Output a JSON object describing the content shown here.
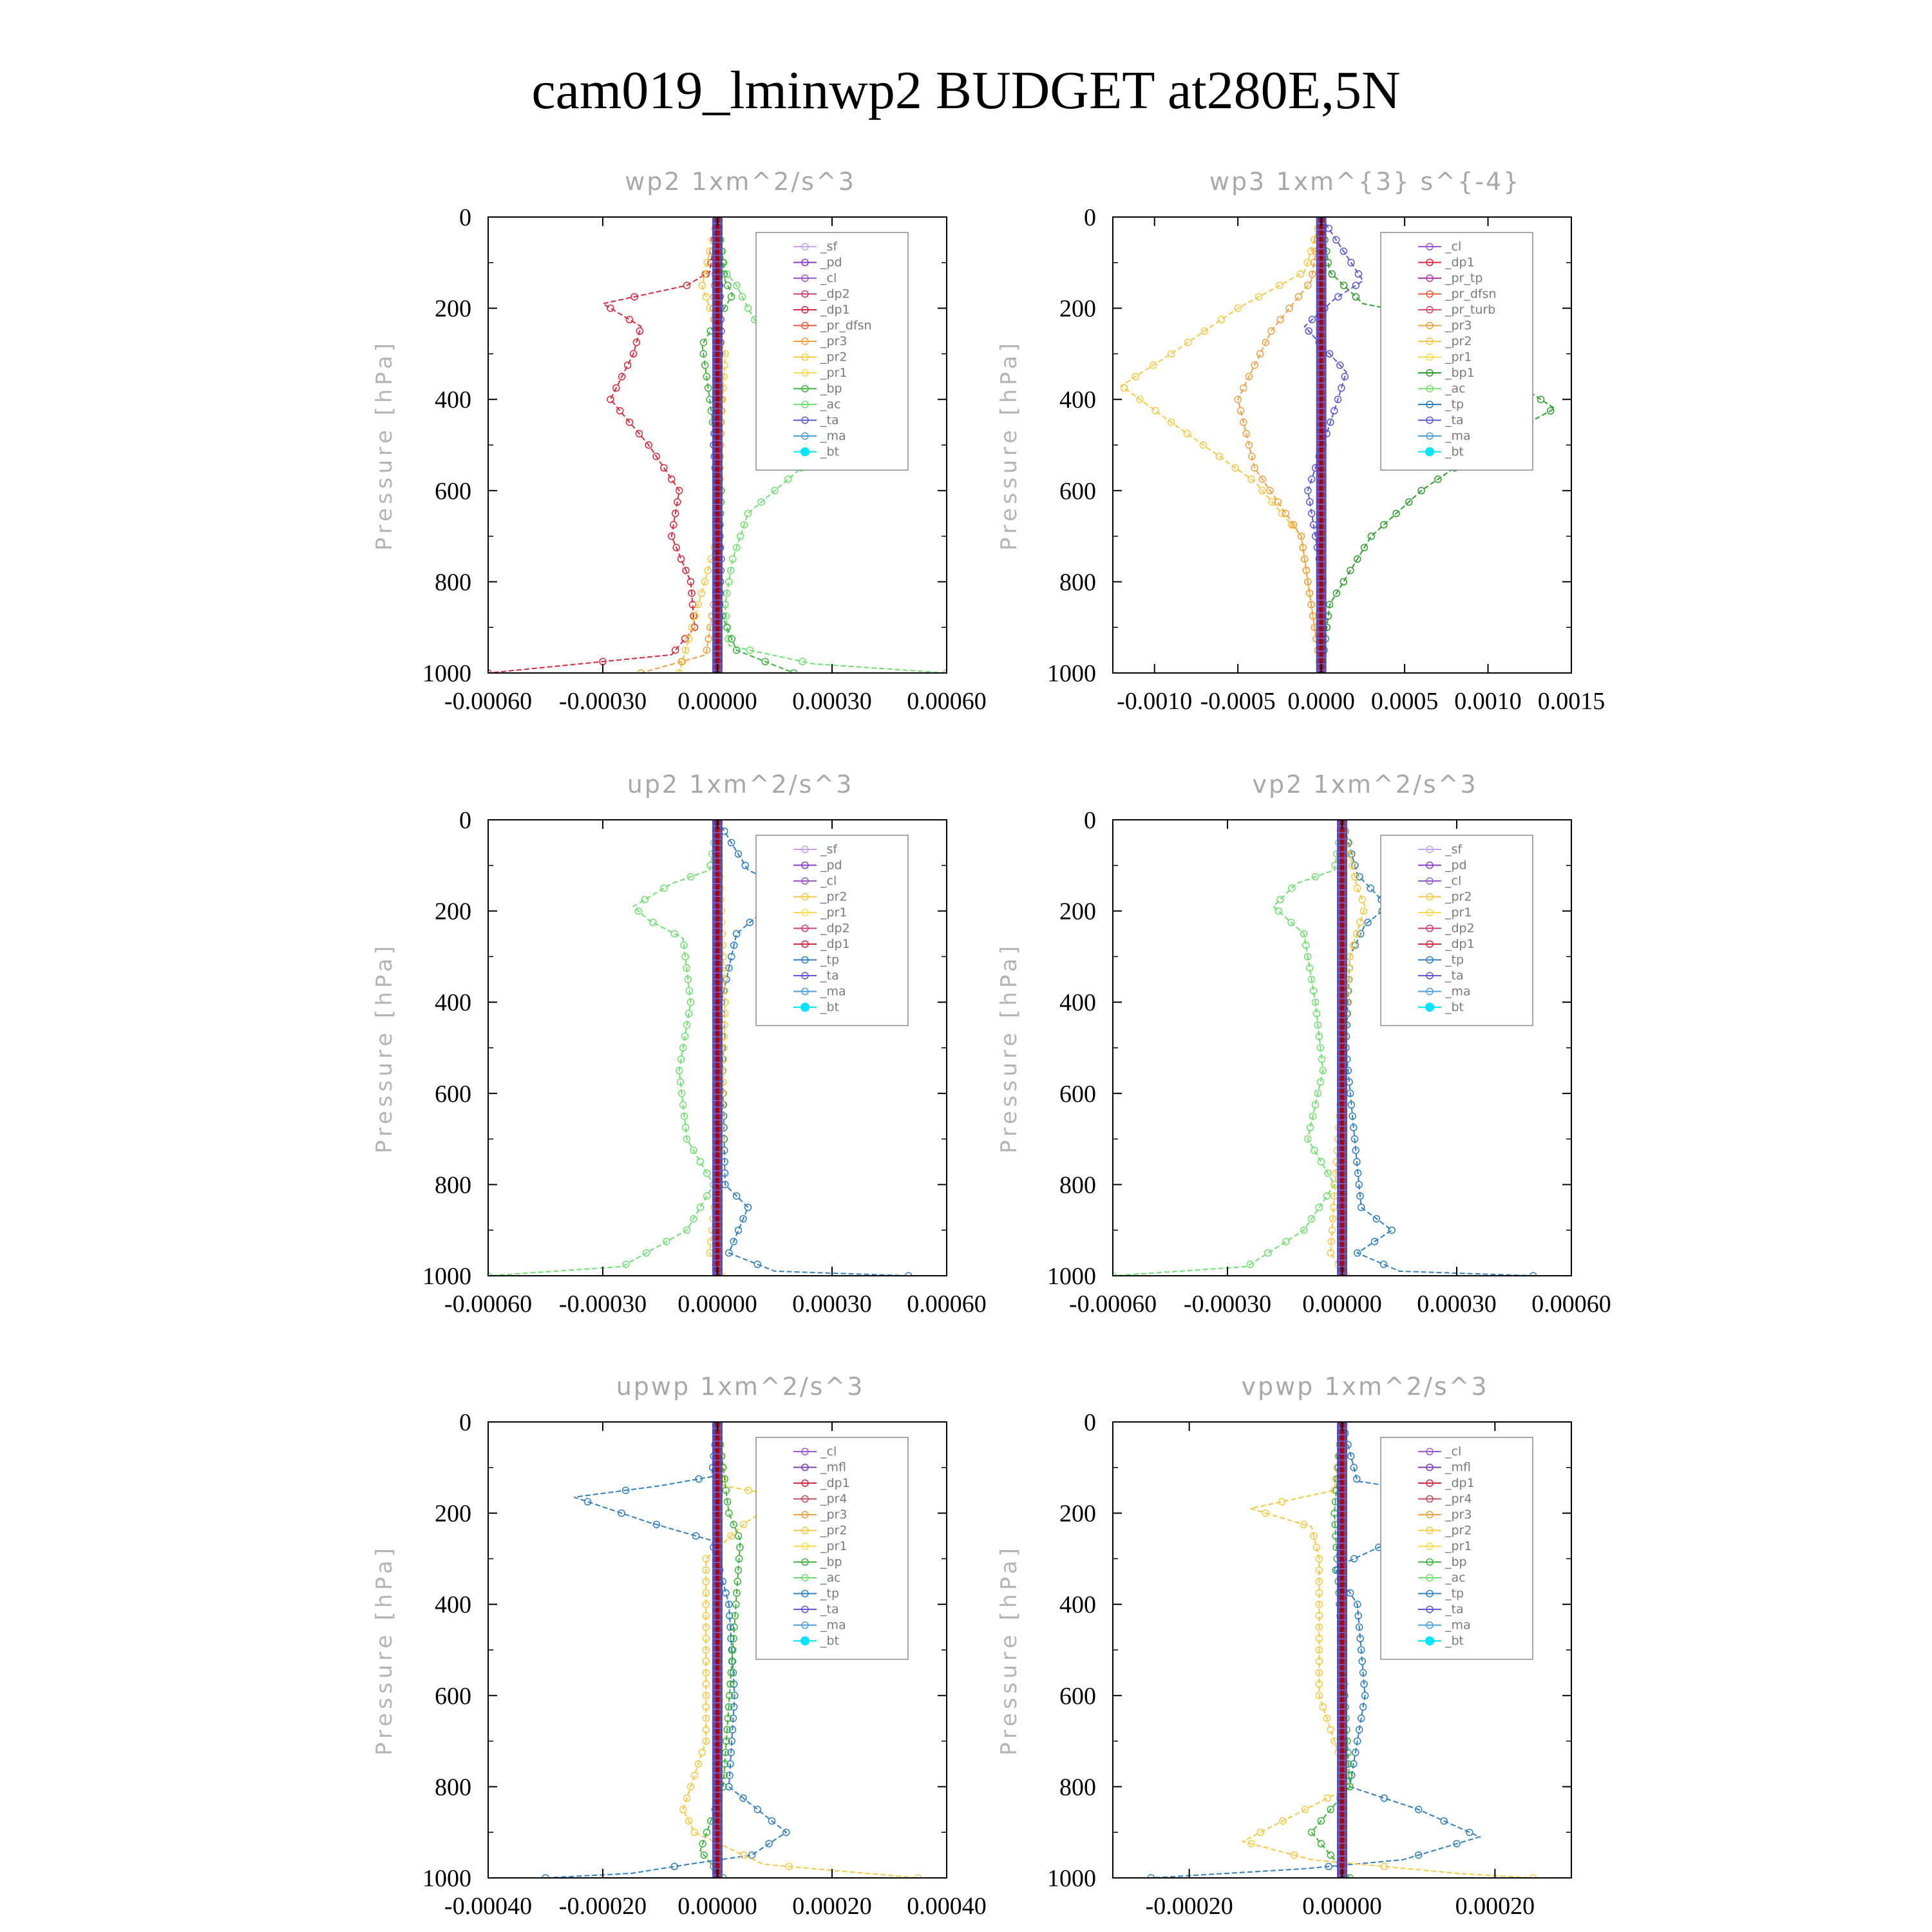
{
  "title": "cam019_lminwp2  BUDGET at280E,5N",
  "colors": {
    "sf": "#c8a2e8",
    "pd": "#8a3cc8",
    "cl": "#9b59d0",
    "dp2": "#c83c78",
    "dp1": "#d8283c",
    "pr_dfsn": "#e85a3c",
    "pr_tp": "#b03cb0",
    "pr_turb": "#d84a6a",
    "pr3": "#f0a040",
    "pr2": "#f5c842",
    "pr1": "#f8dc50",
    "pr4": "#c0505a",
    "bp": "#3cb43c",
    "bp1": "#2ca02c",
    "ac": "#6ee06e",
    "tp": "#2f7fc1",
    "ta": "#5a5ad8",
    "ma": "#4aa0d8",
    "bt": "#00e5ff",
    "mfl": "#7b3fb5",
    "bold_line": "#b00000",
    "frame": "#000000",
    "panel_title": "#a8a8a8"
  },
  "chart_data": [
    {
      "type": "line",
      "id": "wp2",
      "title": "wp2   1xm^2/s^3",
      "ylabel": "Pressure  [hPa]",
      "ylim": [
        1000,
        0
      ],
      "xlim": [
        -0.0006,
        0.0006
      ],
      "xticks": [
        "-0.00060",
        "-0.00030",
        "0.00000",
        "0.00030",
        "0.00060"
      ],
      "xtick_values": [
        -0.0006,
        -0.0003,
        0,
        0.0003,
        0.0006
      ],
      "yticks": [
        "0",
        "200",
        "400",
        "600",
        "800",
        "1000"
      ],
      "legend": [
        "_sf",
        "_pd",
        "_cl",
        "_dp2",
        "_dp1",
        "_pr_dfsn",
        "_pr3",
        "_pr2",
        "_pr1",
        "_bp",
        "_ac",
        "_ta",
        "_ma",
        "_bt"
      ],
      "series": [
        {
          "name": "_dp1",
          "color": "dp1",
          "x": [
            0,
            -2e-05,
            -8e-05,
            -0.0003,
            -0.0002,
            -0.00022,
            -0.00028,
            -0.00018,
            -0.0001,
            -0.00012,
            -7e-05,
            -6e-05,
            -0.00012,
            -0.0006
          ],
          "y": [
            0,
            120,
            150,
            190,
            240,
            300,
            400,
            500,
            600,
            700,
            800,
            900,
            960,
            1000
          ]
        },
        {
          "name": "_ac",
          "color": "ac",
          "x": [
            0,
            2e-05,
            5e-05,
            8e-05,
            0.00015,
            0.00028,
            0.00032,
            0.00022,
            8e-05,
            4e-05,
            2e-05,
            3e-05,
            0.00025,
            0.0006
          ],
          "y": [
            0,
            120,
            150,
            200,
            300,
            400,
            460,
            550,
            650,
            750,
            850,
            940,
            980,
            1000
          ]
        },
        {
          "name": "_bp",
          "color": "bp",
          "x": [
            0,
            2e-05,
            4e-05,
            -4e-05,
            -2e-05,
            1e-05,
            0,
            5e-05,
            0.0002
          ],
          "y": [
            0,
            140,
            170,
            280,
            400,
            600,
            850,
            950,
            1000
          ]
        },
        {
          "name": "_pr2",
          "color": "pr2",
          "x": [
            0,
            -4e-05,
            -2e-05,
            2e-05,
            1e-05,
            0,
            -0.0001
          ],
          "y": [
            0,
            150,
            200,
            300,
            450,
            700,
            1000
          ]
        },
        {
          "name": "_pr3",
          "color": "pr3",
          "x": [
            0,
            -1e-05,
            1e-05,
            0,
            -3e-05,
            -0.0002
          ],
          "y": [
            0,
            200,
            400,
            800,
            960,
            1000
          ]
        },
        {
          "name": "_ta",
          "color": "ta",
          "x": [
            0,
            1e-05,
            -1e-05,
            1e-05,
            0
          ],
          "y": [
            0,
            250,
            500,
            750,
            1000
          ]
        }
      ],
      "bold_line": {
        "x": 0
      }
    },
    {
      "type": "line",
      "id": "wp3",
      "title": "wp3   1xm^{3} s^{-4}",
      "ylabel": "Pressure  [hPa]",
      "ylim": [
        1000,
        0
      ],
      "xlim": [
        -0.00125,
        0.0015
      ],
      "xticks": [
        "-0.0010",
        "-0.0005",
        "0.0000",
        "0.0005",
        "0.0010",
        "0.0015"
      ],
      "xtick_values": [
        -0.001,
        -0.0005,
        0,
        0.0005,
        0.001,
        0.0015
      ],
      "yticks": [
        "0",
        "200",
        "400",
        "600",
        "800",
        "1000"
      ],
      "legend": [
        "_cl",
        "_dp1",
        "_pr_tp",
        "_pr_dfsn",
        "_pr_turb",
        "_pr3",
        "_pr2",
        "_pr1",
        "_bp1",
        "_ac",
        "_tp",
        "_ta",
        "_ma",
        "_bt"
      ],
      "series": [
        {
          "name": "_bp1",
          "color": "bp1",
          "x": [
            0,
            5e-05,
            0.00025,
            0.0008,
            0.0009,
            0.0014,
            0.001,
            0.0006,
            0.0003,
            5e-05,
            0
          ],
          "y": [
            0,
            120,
            190,
            230,
            300,
            420,
            500,
            600,
            700,
            850,
            1000
          ]
        },
        {
          "name": "_pr2",
          "color": "pr2",
          "x": [
            0,
            -0.0001,
            -0.0005,
            -0.0009,
            -0.0012,
            -0.0009,
            -0.0004,
            -0.00012,
            0
          ],
          "y": [
            0,
            120,
            200,
            300,
            370,
            450,
            580,
            700,
            1000
          ]
        },
        {
          "name": "_pr3",
          "color": "pr3",
          "x": [
            0,
            -6e-05,
            -0.0003,
            -0.0005,
            -0.0004,
            -0.00012,
            0
          ],
          "y": [
            0,
            140,
            250,
            400,
            550,
            700,
            1000
          ]
        },
        {
          "name": "_tp",
          "color": "ta",
          "x": [
            0,
            0.00025,
            8e-05,
            -0.0001,
            0.00015,
            0.0001,
            -8e-05,
            1e-05,
            0
          ],
          "y": [
            0,
            140,
            180,
            240,
            340,
            400,
            600,
            800,
            1000
          ]
        }
      ],
      "bold_line": {
        "x": 0
      }
    },
    {
      "type": "line",
      "id": "up2",
      "title": "up2   1xm^2/s^3",
      "ylabel": "Pressure  [hPa]",
      "ylim": [
        1000,
        0
      ],
      "xlim": [
        -0.0006,
        0.0006
      ],
      "xticks": [
        "-0.00060",
        "-0.00030",
        "0.00000",
        "0.00030",
        "0.00060"
      ],
      "xtick_values": [
        -0.0006,
        -0.0003,
        0,
        0.0003,
        0.0006
      ],
      "yticks": [
        "0",
        "200",
        "400",
        "600",
        "800",
        "1000"
      ],
      "legend": [
        "_sf",
        "_pd",
        "_cl",
        "_pr2",
        "_pr1",
        "_dp2",
        "_dp1",
        "_tp",
        "_ta",
        "_ma",
        "_bt"
      ],
      "series": [
        {
          "name": "_dp1",
          "color": "ac",
          "x": [
            0,
            -2e-05,
            -0.00012,
            -0.00022,
            -0.00018,
            -9e-05,
            -7e-05,
            -0.0001,
            -8e-05,
            -1e-05,
            -8e-05,
            -0.00025,
            -0.0006
          ],
          "y": [
            0,
            110,
            140,
            190,
            220,
            260,
            400,
            550,
            700,
            800,
            900,
            980,
            1000
          ]
        },
        {
          "name": "_tp",
          "color": "tp",
          "x": [
            0,
            8e-05,
            0.00018,
            0.00012,
            5e-05,
            1e-05,
            2e-05,
            8e-05,
            3e-05,
            0.00015,
            0.0005
          ],
          "y": [
            0,
            110,
            150,
            200,
            250,
            400,
            800,
            850,
            950,
            990,
            1000
          ]
        },
        {
          "name": "_pr2",
          "color": "pr2",
          "x": [
            0,
            1e-05,
            2e-05,
            1e-05,
            -2e-05,
            1e-05
          ],
          "y": [
            0,
            200,
            400,
            700,
            950,
            1000
          ]
        }
      ],
      "bold_line": {
        "x": 0
      }
    },
    {
      "type": "line",
      "id": "vp2",
      "title": "vp2   1xm^2/s^3",
      "ylabel": "Pressure  [hPa]",
      "ylim": [
        1000,
        0
      ],
      "xlim": [
        -0.0006,
        0.0006
      ],
      "xticks": [
        "-0.00060",
        "-0.00030",
        "0.00000",
        "0.00030",
        "0.00060"
      ],
      "xtick_values": [
        -0.0006,
        -0.0003,
        0,
        0.0003,
        0.0006
      ],
      "yticks": [
        "0",
        "200",
        "400",
        "600",
        "800",
        "1000"
      ],
      "legend": [
        "_sf",
        "_pd",
        "_cl",
        "_pr2",
        "_pr1",
        "_dp2",
        "_dp1",
        "_tp",
        "_ta",
        "_ma",
        "_bt"
      ],
      "series": [
        {
          "name": "_dp1",
          "color": "ac",
          "x": [
            0,
            -2e-05,
            -0.00012,
            -0.00018,
            -0.0001,
            -7e-05,
            -5e-05,
            -9e-05,
            -2e-05,
            -0.0001,
            -0.00025,
            -0.0006
          ],
          "y": [
            0,
            110,
            140,
            190,
            250,
            400,
            550,
            700,
            800,
            900,
            980,
            1000
          ]
        },
        {
          "name": "_tp",
          "color": "tp",
          "x": [
            0,
            4e-05,
            0.00012,
            6e-05,
            2e-05,
            1e-05,
            5e-05,
            0.00013,
            4e-05,
            0.00015,
            0.0005
          ],
          "y": [
            0,
            120,
            190,
            230,
            300,
            500,
            850,
            900,
            950,
            990,
            1000
          ]
        },
        {
          "name": "_pr2",
          "color": "pr2",
          "x": [
            0,
            4e-05,
            6e-05,
            2e-05,
            -3e-05,
            1e-05
          ],
          "y": [
            0,
            150,
            190,
            300,
            950,
            1000
          ]
        }
      ],
      "bold_line": {
        "x": 0
      }
    },
    {
      "type": "line",
      "id": "upwp",
      "title": "upwp   1xm^2/s^3",
      "ylabel": "Pressure  [hPa]",
      "ylim": [
        1000,
        0
      ],
      "xlim": [
        -0.0004,
        0.0004
      ],
      "xticks": [
        "-0.00040",
        "-0.00020",
        "0.00000",
        "0.00020",
        "0.00040"
      ],
      "xtick_values": [
        -0.0004,
        -0.0002,
        0,
        0.0002,
        0.0004
      ],
      "yticks": [
        "0",
        "200",
        "400",
        "600",
        "800",
        "1000"
      ],
      "legend": [
        "_cl",
        "_mfl",
        "_dp1",
        "_pr4",
        "_pr3",
        "_pr2",
        "_pr1",
        "_bp",
        "_ac",
        "_tp",
        "_ta",
        "_ma",
        "_bt"
      ],
      "series": [
        {
          "name": "_tp",
          "color": "tp",
          "x": [
            0,
            -1e-05,
            -0.0001,
            -0.00025,
            -0.00012,
            -1e-05,
            2e-05,
            3e-05,
            2e-05,
            7e-05,
            0.00012,
            6e-05,
            -5e-05,
            -0.00015,
            -0.0003
          ],
          "y": [
            0,
            120,
            140,
            165,
            220,
            260,
            400,
            600,
            800,
            850,
            900,
            950,
            970,
            990,
            1000
          ]
        },
        {
          "name": "_pr2",
          "color": "pr2",
          "x": [
            0,
            1e-05,
            0.00012,
            5e-05,
            -2e-05,
            -2e-05,
            -6e-05,
            -4e-05,
            8e-05,
            0.00035
          ],
          "y": [
            0,
            140,
            165,
            220,
            300,
            700,
            850,
            900,
            970,
            1000
          ]
        },
        {
          "name": "_bp",
          "color": "bp",
          "x": [
            0,
            2e-05,
            4e-05,
            1e-05,
            -3e-05,
            1e-05
          ],
          "y": [
            0,
            200,
            260,
            800,
            940,
            1000
          ]
        }
      ],
      "bold_line": {
        "x": 0
      }
    },
    {
      "type": "line",
      "id": "vpwp",
      "title": "vpwp   1xm^2/s^3",
      "ylabel": "Pressure  [hPa]",
      "ylim": [
        1000,
        0
      ],
      "xlim": [
        -0.0003,
        0.0003
      ],
      "xticks": [
        "-0.00020",
        "0.00000",
        "0.00020"
      ],
      "xtick_values": [
        -0.0002,
        0,
        0.0002
      ],
      "yticks": [
        "0",
        "200",
        "400",
        "600",
        "800",
        "1000"
      ],
      "legend": [
        "_cl",
        "_mfl",
        "_dp1",
        "_pr4",
        "_pr3",
        "_pr2",
        "_pr1",
        "_bp",
        "_ac",
        "_tp",
        "_ta",
        "_ma",
        "_bt"
      ],
      "series": [
        {
          "name": "_tp",
          "color": "tp",
          "x": [
            0,
            2e-05,
            0.0001,
            0.00017,
            8e-05,
            -1e-05,
            2e-05,
            3e-05,
            1e-05,
            0.0001,
            0.00018,
            8e-05,
            -5e-05,
            -0.00025
          ],
          "y": [
            0,
            130,
            150,
            180,
            250,
            320,
            400,
            600,
            800,
            850,
            910,
            960,
            980,
            1000
          ]
        },
        {
          "name": "_pr2",
          "color": "pr2",
          "x": [
            0,
            -1e-05,
            -0.00012,
            -4e-05,
            -3e-05,
            -3e-05,
            1e-05,
            -0.00013,
            -4e-05,
            0.00015,
            0.00025
          ],
          "y": [
            0,
            150,
            190,
            230,
            300,
            600,
            800,
            920,
            960,
            990,
            1000
          ]
        },
        {
          "name": "_bp",
          "color": "bp",
          "x": [
            0,
            -1e-05,
            1e-05,
            -4e-05,
            1e-05
          ],
          "y": [
            0,
            200,
            800,
            900,
            1000
          ]
        }
      ],
      "bold_line": {
        "x": 0
      }
    }
  ]
}
